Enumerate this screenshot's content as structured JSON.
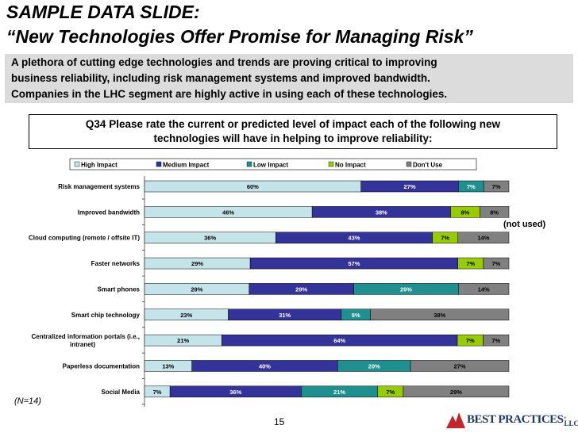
{
  "slide": {
    "title_line1": "SAMPLE DATA SLIDE:",
    "title_line2": "“New Technologies Offer Promise for Managing Risk”",
    "intro_lines": [
      "A plethora of cutting edge technologies and trends are proving critical to improving",
      "business reliability, including risk management systems and improved bandwidth.",
      "Companies in the LHC segment are highly active in using each of these technologies."
    ],
    "question_lines": [
      "Q34 Please rate the current or predicted level of impact each of the following new",
      "technologies will have in helping to improve reliability:"
    ],
    "note_not_used": "(not used)",
    "sample_size": "(N=14)",
    "page_number": "15",
    "logo_text": "BEST PRACTICES",
    "logo_suffix": ", LLC"
  },
  "chart_data": {
    "type": "bar",
    "orientation": "horizontal",
    "stacked": true,
    "normalized": true,
    "legend_position": "top",
    "categories": [
      "Risk management systems",
      "Improved bandwidth",
      "Cloud computing (remote / offsite IT)",
      "Faster networks",
      "Smart phones",
      "Smart chip technology",
      "Centralized information portals (i.e., intranet)",
      "Paperless documentation",
      "Social Media"
    ],
    "series": [
      {
        "name": "High Impact",
        "color": "#c4e4ea",
        "values": [
          60,
          46,
          36,
          29,
          29,
          23,
          21,
          13,
          7
        ]
      },
      {
        "name": "Medium Impact",
        "color": "#33339a",
        "values": [
          27,
          38,
          43,
          57,
          29,
          31,
          64,
          40,
          36
        ]
      },
      {
        "name": "Low Impact",
        "color": "#1f8f8f",
        "values": [
          7,
          0,
          0,
          0,
          29,
          8,
          0,
          20,
          21
        ]
      },
      {
        "name": "No Impact",
        "color": "#99cc00",
        "values": [
          0,
          8,
          7,
          7,
          0,
          0,
          7,
          0,
          7
        ]
      },
      {
        "name": "Don't Use",
        "color": "#808080",
        "values": [
          7,
          8,
          14,
          7,
          14,
          38,
          7,
          27,
          29
        ]
      }
    ],
    "xlim": [
      0,
      100
    ]
  }
}
